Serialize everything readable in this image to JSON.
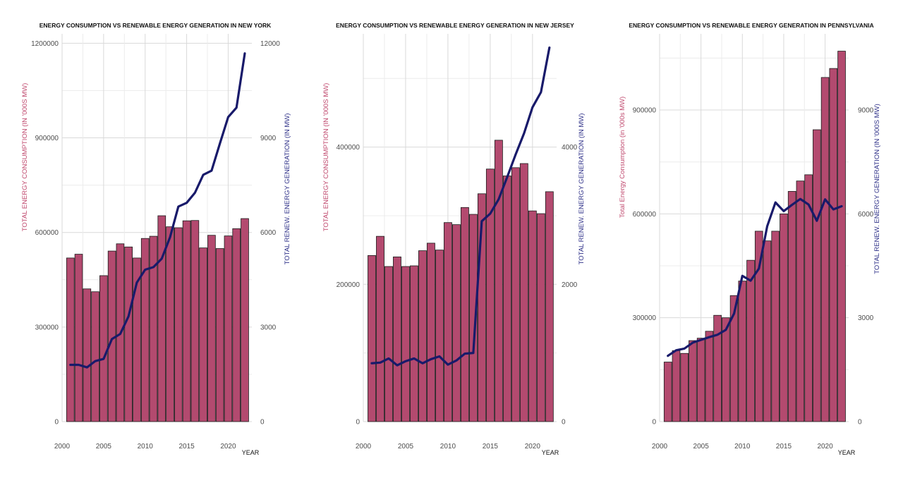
{
  "chart_data": [
    {
      "type": "bar",
      "title": "ENERGY CONSUMPTION VS RENEWABLE ENERGY GENERATION IN NEW YORK",
      "xlabel": "YEAR",
      "ylabel": "TOTAL ENERGY CONSUMPTION (IN '000S MW)",
      "ylabel_right": "TOTAL RENEW. ENERGY GENERATION (IN MW)",
      "x": [
        2001,
        2002,
        2003,
        2004,
        2005,
        2006,
        2007,
        2008,
        2009,
        2010,
        2011,
        2012,
        2013,
        2014,
        2015,
        2016,
        2017,
        2018,
        2019,
        2020,
        2021,
        2022
      ],
      "x_ticks": [
        "2000",
        "2005",
        "2010",
        "2015",
        "2020"
      ],
      "y_ticks_left": [
        "0",
        "300000",
        "600000",
        "900000",
        "1200000"
      ],
      "y_ticks_right": [
        "0",
        "3000",
        "6000",
        "9000",
        "12000"
      ],
      "ylim_left": [
        0,
        1230000
      ],
      "ylim_right": [
        0,
        12300
      ],
      "series": [
        {
          "type": "bar",
          "axis": "left",
          "values": [
            519000,
            531000,
            421000,
            412000,
            463000,
            541000,
            564000,
            554000,
            519000,
            581000,
            588000,
            653000,
            618000,
            615000,
            637000,
            638000,
            551000,
            591000,
            549000,
            589000,
            612000,
            644000
          ]
        },
        {
          "type": "line",
          "axis": "right",
          "values": [
            1800,
            1800,
            1720,
            1920,
            1990,
            2620,
            2780,
            3340,
            4410,
            4820,
            4900,
            5170,
            5850,
            6820,
            6940,
            7260,
            7830,
            7960,
            8820,
            9660,
            9960,
            11680
          ]
        }
      ],
      "colors": {
        "bar": "#b34a6f",
        "line": "#181a6a"
      }
    },
    {
      "type": "bar",
      "title": "ENERGY CONSUMPTION VS RENEWABLE ENERGY GENERATION IN NEW JERSEY",
      "xlabel": "YEAR",
      "ylabel": "TOTAL ENERGY CONSUMPTION (IN '000S MW)",
      "ylabel_right": "TOTAL RENEW. ENERGY GENERATION (IN MW)",
      "x": [
        2001,
        2002,
        2003,
        2004,
        2005,
        2006,
        2007,
        2008,
        2009,
        2010,
        2011,
        2012,
        2013,
        2014,
        2015,
        2016,
        2017,
        2018,
        2019,
        2020,
        2021,
        2022
      ],
      "x_ticks": [
        "2000",
        "2005",
        "2010",
        "2015",
        "2020"
      ],
      "y_ticks_left": [
        "0",
        "200000",
        "400000"
      ],
      "y_ticks_right": [
        "0",
        "2000",
        "4000"
      ],
      "ylim_left": [
        0,
        565000
      ],
      "ylim_right": [
        0,
        5650
      ],
      "series": [
        {
          "type": "bar",
          "axis": "left",
          "values": [
            242000,
            270000,
            226000,
            240000,
            226000,
            227000,
            249000,
            260000,
            250000,
            290000,
            287000,
            312000,
            302000,
            332000,
            368000,
            410000,
            358000,
            370000,
            376000,
            307000,
            303000,
            335000
          ]
        },
        {
          "type": "line",
          "axis": "right",
          "values": [
            850,
            860,
            920,
            820,
            880,
            920,
            850,
            910,
            950,
            830,
            890,
            990,
            1000,
            2920,
            3030,
            3240,
            3560,
            3890,
            4200,
            4580,
            4800,
            5450
          ]
        }
      ],
      "colors": {
        "bar": "#b34a6f",
        "line": "#181a6a"
      }
    },
    {
      "type": "bar",
      "title": "ENERGY CONSUMPTION VS RENEWABLE ENERGY GENERATION IN PENNSYLVANIA",
      "xlabel": "YEAR",
      "ylabel": "Total Energy Consumption (in '000s MW)",
      "ylabel_right": "TOTAL RENEW. ENERGY GENERATION (IN '000S MW)",
      "x": [
        2001,
        2002,
        2003,
        2004,
        2005,
        2006,
        2007,
        2008,
        2009,
        2010,
        2011,
        2012,
        2013,
        2014,
        2015,
        2016,
        2017,
        2018,
        2019,
        2020,
        2021,
        2022
      ],
      "x_ticks": [
        "2000",
        "2005",
        "2010",
        "2015",
        "2020"
      ],
      "y_ticks_left": [
        "0",
        "300000",
        "600000",
        "900000"
      ],
      "y_ticks_right": [
        "0",
        "3000",
        "6000",
        "9000"
      ],
      "ylim_left": [
        0,
        1120000
      ],
      "ylim_right": [
        0,
        11200
      ],
      "series": [
        {
          "type": "bar",
          "axis": "left",
          "values": [
            172000,
            205000,
            197000,
            234000,
            241000,
            261000,
            307000,
            300000,
            364000,
            406000,
            466000,
            550000,
            522000,
            550000,
            600000,
            665000,
            695000,
            713000,
            843000,
            994000,
            1020000,
            1070000
          ]
        },
        {
          "type": "line",
          "axis": "right",
          "values": [
            1900,
            2060,
            2110,
            2280,
            2360,
            2440,
            2510,
            2650,
            3120,
            4210,
            4070,
            4420,
            5640,
            6330,
            6080,
            6260,
            6430,
            6270,
            5800,
            6420,
            6130,
            6220
          ]
        }
      ],
      "colors": {
        "bar": "#b34a6f",
        "line": "#181a6a"
      }
    }
  ]
}
